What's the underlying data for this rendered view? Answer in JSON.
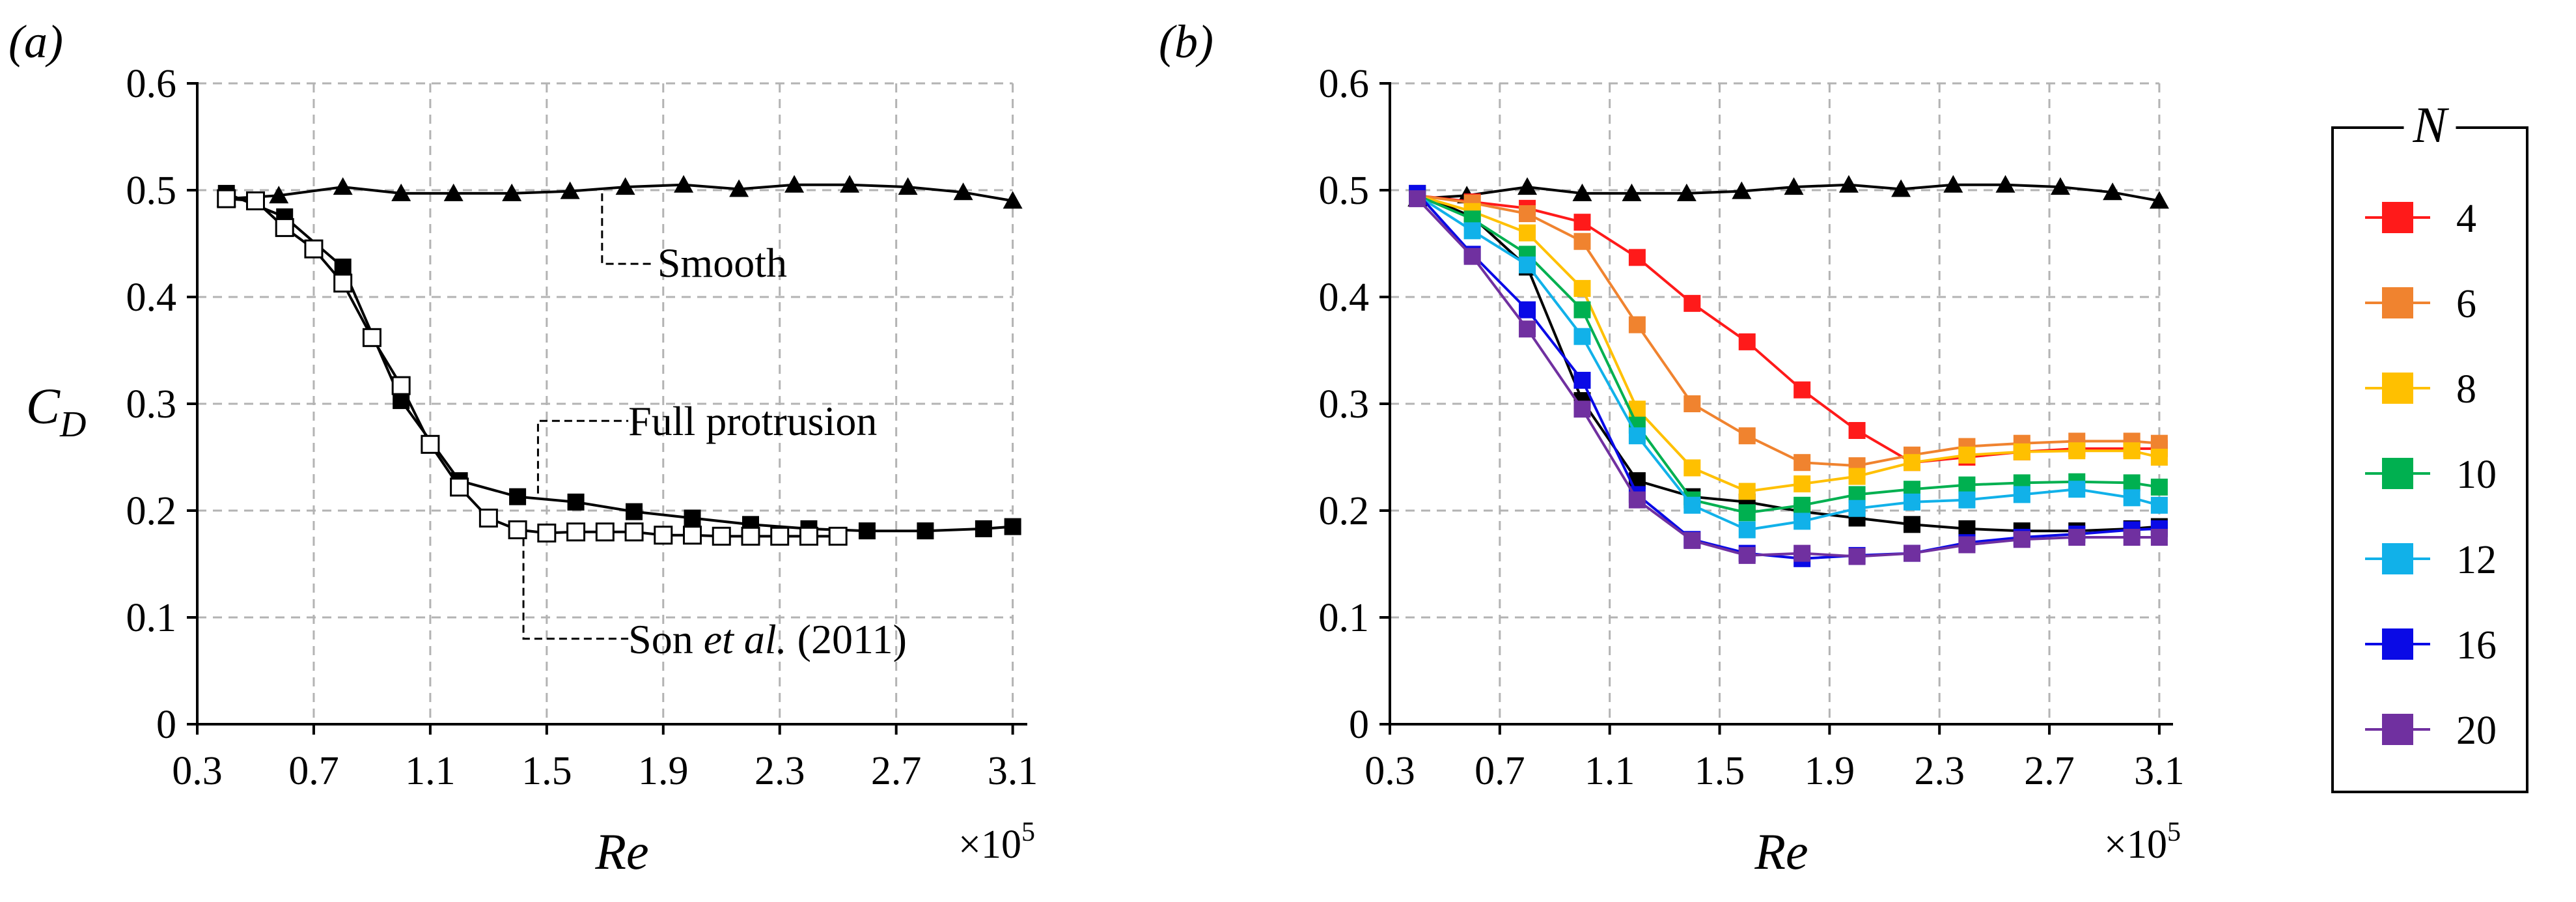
{
  "chart_data": [
    {
      "type": "line",
      "panel_label": "(a)",
      "xlabel": "Re",
      "x_multiplier": "×10",
      "x_multiplier_exp": "5",
      "ylabel_main": "C",
      "ylabel_sub": "D",
      "xlim": [
        0.3,
        3.15
      ],
      "ylim": [
        0,
        0.6
      ],
      "xticks": [
        "0.3",
        "0.7",
        "1.1",
        "1.5",
        "1.9",
        "2.3",
        "2.7",
        "3.1"
      ],
      "yticks": [
        "0",
        "0.1",
        "0.2",
        "0.3",
        "0.4",
        "0.5",
        "0.6"
      ],
      "grid": true,
      "series": [
        {
          "name": "Smooth",
          "marker": "triangle",
          "color": "#000000",
          "filled": true,
          "x": [
            0.4,
            0.58,
            0.8,
            1.0,
            1.18,
            1.38,
            1.58,
            1.77,
            1.97,
            2.16,
            2.35,
            2.54,
            2.74,
            2.93,
            3.1
          ],
          "y": [
            0.492,
            0.495,
            0.503,
            0.497,
            0.497,
            0.497,
            0.499,
            0.503,
            0.505,
            0.501,
            0.505,
            0.505,
            0.503,
            0.498,
            0.49
          ]
        },
        {
          "name": "Full protrusion",
          "marker": "square",
          "color": "#000000",
          "filled": true,
          "x": [
            0.4,
            0.6,
            0.8,
            1.0,
            1.2,
            1.4,
            1.6,
            1.8,
            2.0,
            2.2,
            2.4,
            2.6,
            2.8,
            3.0,
            3.1
          ],
          "y": [
            0.497,
            0.475,
            0.428,
            0.303,
            0.228,
            0.213,
            0.208,
            0.199,
            0.193,
            0.187,
            0.183,
            0.181,
            0.181,
            0.183,
            0.185
          ]
        },
        {
          "name": "Son et al. (2011)",
          "marker": "square",
          "color": "#000000",
          "filled": false,
          "x": [
            0.4,
            0.5,
            0.6,
            0.7,
            0.8,
            0.9,
            1.0,
            1.1,
            1.2,
            1.3,
            1.4,
            1.5,
            1.6,
            1.7,
            1.8,
            1.9,
            2.0,
            2.1,
            2.2,
            2.3,
            2.4,
            2.5
          ],
          "y": [
            0.492,
            0.49,
            0.465,
            0.445,
            0.413,
            0.362,
            0.317,
            0.262,
            0.222,
            0.193,
            0.182,
            0.179,
            0.18,
            0.18,
            0.18,
            0.177,
            0.177,
            0.176,
            0.176,
            0.176,
            0.176,
            0.176
          ]
        }
      ],
      "annotations": [
        {
          "text": "Smooth"
        },
        {
          "text": "Full protrusion"
        },
        {
          "text_prefix": "Son ",
          "text_italic": "et al.",
          "text_suffix": " (2011)"
        }
      ]
    },
    {
      "type": "line",
      "panel_label": "(b)",
      "xlabel": "Re",
      "x_multiplier": "×10",
      "x_multiplier_exp": "5",
      "xlim": [
        0.3,
        3.15
      ],
      "ylim": [
        0,
        0.6
      ],
      "xticks": [
        "0.3",
        "0.7",
        "1.1",
        "1.5",
        "1.9",
        "2.3",
        "2.7",
        "3.1"
      ],
      "yticks": [
        "0",
        "0.1",
        "0.2",
        "0.3",
        "0.4",
        "0.5",
        "0.6"
      ],
      "grid": true,
      "legend_title": "N",
      "legend_position": "right",
      "series": [
        {
          "name": "Smooth",
          "in_legend": false,
          "marker": "triangle",
          "color": "#000000",
          "x": [
            0.4,
            0.58,
            0.8,
            1.0,
            1.18,
            1.38,
            1.58,
            1.77,
            1.97,
            2.16,
            2.35,
            2.54,
            2.74,
            2.93,
            3.1
          ],
          "y": [
            0.492,
            0.495,
            0.503,
            0.497,
            0.497,
            0.497,
            0.499,
            0.503,
            0.505,
            0.501,
            0.505,
            0.505,
            0.503,
            0.498,
            0.49
          ]
        },
        {
          "name": "Full protrusion",
          "in_legend": false,
          "marker": "square",
          "color": "#000000",
          "x": [
            0.4,
            0.6,
            0.8,
            1.0,
            1.2,
            1.4,
            1.6,
            1.8,
            2.0,
            2.2,
            2.4,
            2.6,
            2.8,
            3.0,
            3.1
          ],
          "y": [
            0.497,
            0.475,
            0.428,
            0.303,
            0.228,
            0.213,
            0.208,
            0.199,
            0.193,
            0.187,
            0.183,
            0.181,
            0.181,
            0.183,
            0.185
          ]
        },
        {
          "name": "4",
          "in_legend": true,
          "marker": "square",
          "color": "#ff1a1a",
          "x": [
            0.4,
            0.6,
            0.8,
            1.0,
            1.2,
            1.4,
            1.6,
            1.8,
            2.0,
            2.2,
            2.4,
            2.6,
            2.8,
            3.0,
            3.1
          ],
          "y": [
            0.495,
            0.489,
            0.483,
            0.47,
            0.437,
            0.394,
            0.358,
            0.313,
            0.275,
            0.245,
            0.25,
            0.255,
            0.258,
            0.258,
            0.258
          ]
        },
        {
          "name": "6",
          "in_legend": true,
          "marker": "square",
          "color": "#f0832f",
          "x": [
            0.4,
            0.6,
            0.8,
            1.0,
            1.2,
            1.4,
            1.6,
            1.8,
            2.0,
            2.2,
            2.4,
            2.6,
            2.8,
            3.0,
            3.1
          ],
          "y": [
            0.495,
            0.488,
            0.478,
            0.452,
            0.374,
            0.3,
            0.27,
            0.245,
            0.242,
            0.252,
            0.26,
            0.263,
            0.265,
            0.265,
            0.263
          ]
        },
        {
          "name": "8",
          "in_legend": true,
          "marker": "square",
          "color": "#ffc000",
          "x": [
            0.4,
            0.6,
            0.8,
            1.0,
            1.2,
            1.4,
            1.6,
            1.8,
            2.0,
            2.2,
            2.4,
            2.6,
            2.8,
            3.0,
            3.1
          ],
          "y": [
            0.495,
            0.48,
            0.46,
            0.408,
            0.295,
            0.24,
            0.218,
            0.225,
            0.232,
            0.245,
            0.252,
            0.255,
            0.256,
            0.256,
            0.25
          ]
        },
        {
          "name": "10",
          "in_legend": true,
          "marker": "square",
          "color": "#00b050",
          "x": [
            0.4,
            0.6,
            0.8,
            1.0,
            1.2,
            1.4,
            1.6,
            1.8,
            2.0,
            2.2,
            2.4,
            2.6,
            2.8,
            3.0,
            3.1
          ],
          "y": [
            0.495,
            0.473,
            0.44,
            0.388,
            0.28,
            0.21,
            0.198,
            0.205,
            0.215,
            0.22,
            0.224,
            0.226,
            0.227,
            0.226,
            0.222
          ]
        },
        {
          "name": "12",
          "in_legend": true,
          "marker": "square",
          "color": "#11b1e9",
          "x": [
            0.4,
            0.6,
            0.8,
            1.0,
            1.2,
            1.4,
            1.6,
            1.8,
            2.0,
            2.2,
            2.4,
            2.6,
            2.8,
            3.0,
            3.1
          ],
          "y": [
            0.495,
            0.462,
            0.43,
            0.363,
            0.27,
            0.205,
            0.182,
            0.19,
            0.202,
            0.208,
            0.21,
            0.215,
            0.22,
            0.212,
            0.205
          ]
        },
        {
          "name": "16",
          "in_legend": true,
          "marker": "square",
          "color": "#0a0ae6",
          "x": [
            0.4,
            0.6,
            0.8,
            1.0,
            1.2,
            1.4,
            1.6,
            1.8,
            2.0,
            2.2,
            2.4,
            2.6,
            2.8,
            3.0,
            3.1
          ],
          "y": [
            0.497,
            0.44,
            0.388,
            0.322,
            0.215,
            0.173,
            0.16,
            0.155,
            0.158,
            0.16,
            0.17,
            0.175,
            0.178,
            0.182,
            0.183
          ]
        },
        {
          "name": "20",
          "in_legend": true,
          "marker": "square",
          "color": "#7030a0",
          "x": [
            0.4,
            0.6,
            0.8,
            1.0,
            1.2,
            1.4,
            1.6,
            1.8,
            2.0,
            2.2,
            2.4,
            2.6,
            2.8,
            3.0,
            3.1
          ],
          "y": [
            0.492,
            0.438,
            0.37,
            0.295,
            0.21,
            0.172,
            0.158,
            0.16,
            0.157,
            0.16,
            0.168,
            0.173,
            0.175,
            0.175,
            0.175
          ]
        }
      ]
    }
  ]
}
